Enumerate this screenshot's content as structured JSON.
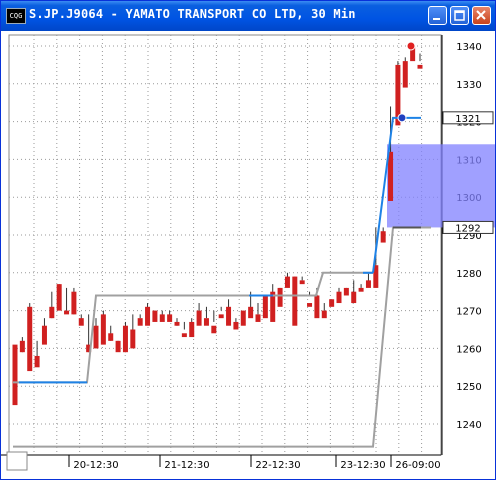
{
  "window": {
    "icon_text": "CQG",
    "title": "S.JP.J9064 - YAMATO TRANSPORT CO LTD, 30 Min",
    "buttons": [
      "minimize-icon",
      "maximize-icon",
      "close-icon"
    ]
  },
  "chart_data": {
    "type": "candlestick",
    "title": "S.JP.J9064 - YAMATO TRANSPORT CO LTD, 30 Min",
    "y_ticks": [
      1240,
      1250,
      1260,
      1270,
      1280,
      1290,
      1300,
      1310,
      1320,
      1330,
      1340
    ],
    "ylim": [
      1235,
      1343
    ],
    "x_labels": [
      "20-12:30",
      "21-12:30",
      "22-12:30",
      "23-12:30",
      "26-09:00"
    ],
    "price_tags": {
      "last": "1321",
      "marker": "1292"
    },
    "colors": {
      "up": "#2020c0",
      "down": "#d02020",
      "neutral": "#555555",
      "line_gray": "#a0a0a0",
      "line_blue": "#1e82e6",
      "band": "#8080ff"
    },
    "gray_step_line": [
      1234,
      1251,
      1274,
      1280,
      1292
    ],
    "blue_level_line": [
      1251,
      1274,
      1280,
      1321
    ],
    "highlight_band": [
      1292,
      1314
    ],
    "candles": [
      [
        1261,
        1258,
        1246,
        1245
      ],
      [
        1262,
        1263,
        1259,
        1259
      ],
      [
        1271,
        1272,
        1255,
        1254
      ],
      [
        1258,
        1262,
        1256,
        1255
      ],
      [
        1266,
        1268,
        1262,
        1261
      ],
      [
        1271,
        1275,
        1268,
        1268
      ],
      [
        1277,
        1277,
        1272,
        1270
      ],
      [
        1270,
        1276,
        1270,
        1269
      ],
      [
        1275,
        1276,
        1269,
        1269
      ],
      [
        1268,
        1269,
        1267,
        1266
      ],
      [
        1261,
        1269,
        1259,
        1259
      ],
      [
        1266,
        1268,
        1260,
        1260
      ],
      [
        1269,
        1270,
        1262,
        1261
      ],
      [
        1264,
        1266,
        1262,
        1262
      ],
      [
        1262,
        1262,
        1260,
        1259
      ],
      [
        1266,
        1267,
        1259,
        1259
      ],
      [
        1265,
        1269,
        1261,
        1260
      ],
      [
        1268,
        1269,
        1268,
        1266
      ],
      [
        1271,
        1272,
        1267,
        1266
      ],
      [
        1270,
        1270,
        1268,
        1267
      ],
      [
        1269,
        1270,
        1268,
        1267
      ],
      [
        1269,
        1270,
        1268,
        1267
      ],
      [
        1267,
        1268,
        1266,
        1266
      ],
      [
        1264,
        1267,
        1265,
        1263
      ],
      [
        1267,
        1268,
        1264,
        1263
      ],
      [
        1270,
        1272,
        1267,
        1266
      ],
      [
        1268,
        1271,
        1268,
        1266
      ],
      [
        1266,
        1270,
        1267,
        1264
      ],
      [
        1269,
        1271,
        1270,
        1268
      ],
      [
        1271,
        1273,
        1267,
        1266
      ],
      [
        1267,
        1268,
        1267,
        1265
      ],
      [
        1270,
        1270,
        1268,
        1266
      ],
      [
        1271,
        1275,
        1269,
        1268
      ],
      [
        1269,
        1272,
        1269,
        1267
      ],
      [
        1274,
        1274,
        1270,
        1268
      ],
      [
        1275,
        1277,
        1269,
        1267
      ],
      [
        1276,
        1276,
        1273,
        1271
      ],
      [
        1279,
        1280,
        1277,
        1276
      ],
      [
        1279,
        1279,
        1267,
        1266
      ],
      [
        1278,
        1279,
        1278,
        1277
      ],
      [
        1272,
        1275,
        1274,
        1271
      ],
      [
        1274,
        1276,
        1270,
        1268
      ],
      [
        1270,
        1272,
        1270,
        1268
      ],
      [
        1273,
        1273,
        1272,
        1271
      ],
      [
        1275,
        1276,
        1273,
        1272
      ],
      [
        1276,
        1276,
        1275,
        1274
      ],
      [
        1275,
        1278,
        1274,
        1272
      ],
      [
        1276,
        1277,
        1276,
        1275
      ],
      [
        1278,
        1280,
        1277,
        1276
      ],
      [
        1282,
        1292,
        1277,
        1276
      ],
      [
        1291,
        1292,
        1289,
        1288
      ],
      [
        1312,
        1324,
        1300,
        1299
      ],
      [
        1335,
        1336,
        1320,
        1319
      ],
      [
        1336,
        1337,
        1330,
        1329
      ],
      [
        1340,
        1341,
        1338,
        1336
      ],
      [
        1335,
        1338,
        1336,
        1334
      ]
    ]
  }
}
